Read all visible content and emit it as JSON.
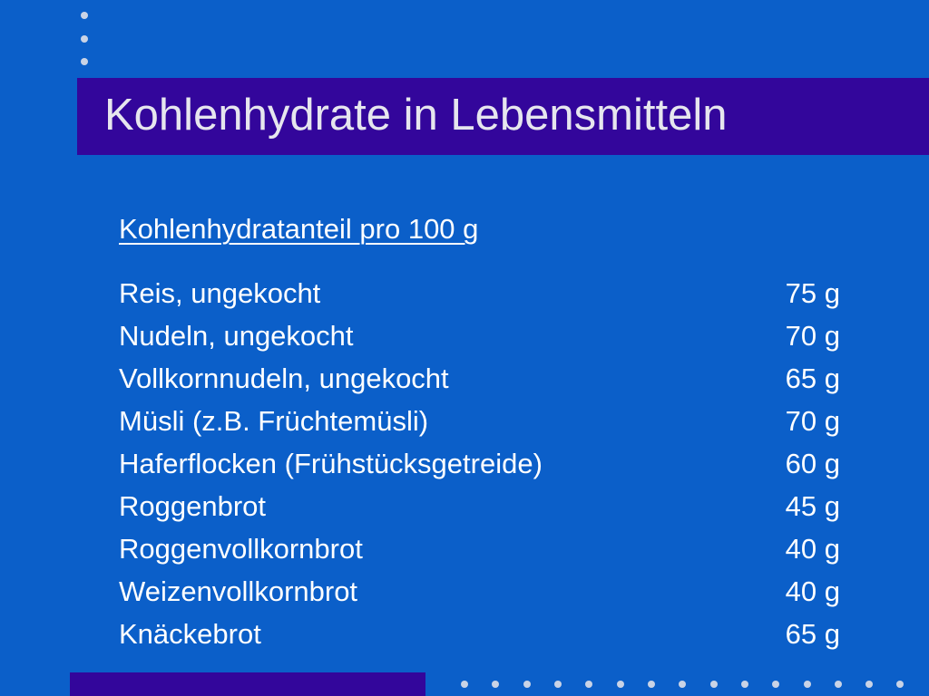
{
  "slide": {
    "title": "Kohlenhydrate in Lebensmitteln",
    "subtitle": "Kohlenhydratanteil pro 100 g",
    "items": [
      {
        "name": "Reis, ungekocht",
        "value": "75 g"
      },
      {
        "name": "Nudeln, ungekocht",
        "value": "70 g"
      },
      {
        "name": "Vollkornnudeln, ungekocht",
        "value": "65 g"
      },
      {
        "name": "Müsli (z.B. Früchtemüsli)",
        "value": "70 g"
      },
      {
        "name": "Haferflocken (Frühstücksgetreide)",
        "value": "60 g"
      },
      {
        "name": "Roggenbrot",
        "value": "45 g"
      },
      {
        "name": "Roggenvollkornbrot",
        "value": "40 g"
      },
      {
        "name": "Weizenvollkornbrot",
        "value": "40 g"
      },
      {
        "name": "Knäckebrot",
        "value": "65 g"
      }
    ]
  },
  "colors": {
    "background": "#0b5fc9",
    "accent_bar": "#33069b",
    "dots": "#c9d3e6",
    "text": "#ffffff",
    "title_text": "#e6e6ee"
  }
}
